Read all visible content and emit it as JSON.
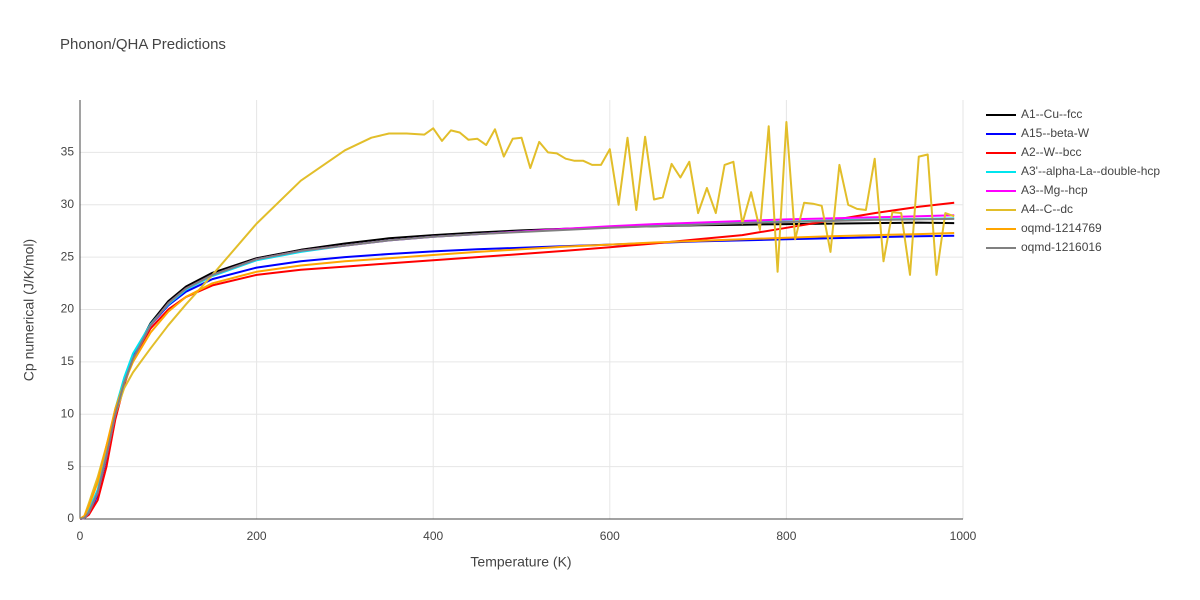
{
  "chart_data": {
    "type": "line",
    "title": "Phonon/QHA Predictions",
    "xlabel": "Temperature (K)",
    "ylabel": "Cp numerical (J/K/mol)",
    "xlim": [
      0,
      1000
    ],
    "ylim": [
      0,
      40
    ],
    "xticks": [
      0,
      200,
      400,
      600,
      800,
      1000
    ],
    "yticks": [
      0,
      5,
      10,
      15,
      20,
      25,
      30,
      35
    ],
    "grid": true,
    "legend": "right",
    "x": [
      0,
      5,
      10,
      20,
      30,
      40,
      50,
      60,
      80,
      100,
      120,
      150,
      200,
      250,
      300,
      350,
      400,
      450,
      500,
      550,
      600,
      650,
      700,
      750,
      800,
      850,
      900,
      950,
      990
    ],
    "series": [
      {
        "name": "A1--Cu--fcc",
        "color": "#000000",
        "values": [
          0,
          0.1,
          0.6,
          2.5,
          6,
          10,
          13,
          15.5,
          18.7,
          20.8,
          22.2,
          23.5,
          24.9,
          25.7,
          26.3,
          26.8,
          27.1,
          27.35,
          27.55,
          27.7,
          27.85,
          27.95,
          28.05,
          28.1,
          28.15,
          28.2,
          28.25,
          28.3,
          28.25
        ]
      },
      {
        "name": "A15--beta-W",
        "color": "#0000ff",
        "values": [
          0,
          0.1,
          0.5,
          2.3,
          5.8,
          10,
          13.2,
          15.5,
          18.5,
          20.4,
          21.7,
          22.9,
          24.0,
          24.6,
          25.0,
          25.3,
          25.55,
          25.75,
          25.9,
          26.05,
          26.2,
          26.35,
          26.5,
          26.6,
          26.7,
          26.8,
          26.9,
          27.0,
          27.05
        ]
      },
      {
        "name": "A2--W--bcc",
        "color": "#ff0000",
        "values": [
          0,
          0.1,
          0.4,
          1.8,
          5.0,
          9.5,
          12.8,
          15.3,
          18.2,
          20.0,
          21.2,
          22.3,
          23.3,
          23.8,
          24.1,
          24.4,
          24.7,
          25.0,
          25.3,
          25.6,
          25.95,
          26.3,
          26.7,
          27.1,
          27.8,
          28.5,
          29.2,
          29.8,
          30.2
        ]
      },
      {
        "name": "A3'--alpha-La--double-hcp",
        "color": "#00e5ee",
        "values": [
          0,
          0.2,
          0.8,
          2.8,
          6.5,
          10.5,
          13.5,
          15.8,
          18.6,
          20.5,
          21.9,
          23.2,
          24.7,
          25.5,
          26.1,
          26.6,
          26.95,
          27.2,
          27.45,
          27.65,
          27.85,
          28.0,
          28.15,
          28.3,
          28.4,
          28.5,
          28.6,
          28.65,
          28.7
        ]
      },
      {
        "name": "A3--Mg--hcp",
        "color": "#ff00ff",
        "values": [
          0,
          0.1,
          0.6,
          2.5,
          6,
          10,
          13,
          15.3,
          18.5,
          20.6,
          22,
          23.3,
          24.8,
          25.6,
          26.1,
          26.6,
          26.95,
          27.2,
          27.45,
          27.7,
          27.95,
          28.15,
          28.3,
          28.45,
          28.6,
          28.7,
          28.8,
          28.9,
          29.0
        ]
      },
      {
        "name": "A4--C--dc",
        "color": "#e2be2a",
        "x": [
          0,
          5,
          10,
          20,
          30,
          40,
          50,
          60,
          80,
          100,
          120,
          150,
          200,
          250,
          300,
          330,
          350,
          370,
          390,
          400,
          410,
          420,
          430,
          440,
          450,
          460,
          470,
          480,
          490,
          500,
          510,
          520,
          530,
          540,
          550,
          560,
          570,
          580,
          590,
          600,
          610,
          620,
          630,
          640,
          650,
          660,
          670,
          680,
          690,
          700,
          710,
          720,
          730,
          740,
          750,
          760,
          770,
          780,
          790,
          800,
          810,
          820,
          830,
          840,
          850,
          860,
          870,
          880,
          890,
          900,
          910,
          920,
          930,
          940,
          950,
          960,
          970,
          980,
          990
        ],
        "values": [
          0,
          0.3,
          1.5,
          4,
          7,
          10,
          12.5,
          14,
          16.3,
          18.5,
          20.5,
          23.3,
          28.2,
          32.3,
          35.2,
          36.4,
          36.8,
          36.8,
          36.7,
          37.3,
          36.1,
          37.1,
          36.9,
          36.2,
          36.3,
          35.7,
          37.2,
          34.6,
          36.3,
          36.4,
          33.5,
          36.0,
          35.0,
          34.9,
          34.4,
          34.2,
          34.2,
          33.8,
          33.8,
          35.3,
          30.0,
          36.4,
          29.5,
          36.5,
          30.5,
          30.7,
          33.9,
          32.6,
          34.1,
          29.2,
          31.6,
          29.2,
          33.8,
          34.1,
          28.2,
          31.2,
          27.6,
          37.5,
          23.6,
          37.9,
          26.7,
          30.2,
          30.1,
          29.9,
          25.5,
          33.8,
          30.0,
          29.6,
          29.5,
          34.4,
          24.6,
          29.3,
          29.2,
          23.3,
          34.6,
          34.8,
          23.3,
          29.2,
          28.9
        ]
      },
      {
        "name": "oqmd-1214769",
        "color": "#ffa500",
        "values": [
          0,
          0.3,
          1.2,
          3.5,
          7,
          10.5,
          13,
          15,
          17.8,
          19.8,
          21.2,
          22.5,
          23.6,
          24.2,
          24.6,
          24.9,
          25.2,
          25.5,
          25.75,
          26.0,
          26.2,
          26.4,
          26.55,
          26.7,
          26.85,
          27.0,
          27.1,
          27.2,
          27.3
        ]
      },
      {
        "name": "oqmd-1216016",
        "color": "#808080",
        "values": [
          0,
          0.1,
          0.6,
          2.5,
          6,
          10,
          13,
          15.3,
          18.5,
          20.6,
          22,
          23.3,
          24.8,
          25.6,
          26.1,
          26.6,
          26.95,
          27.2,
          27.4,
          27.6,
          27.8,
          27.95,
          28.1,
          28.25,
          28.35,
          28.45,
          28.55,
          28.6,
          28.65
        ]
      }
    ]
  }
}
